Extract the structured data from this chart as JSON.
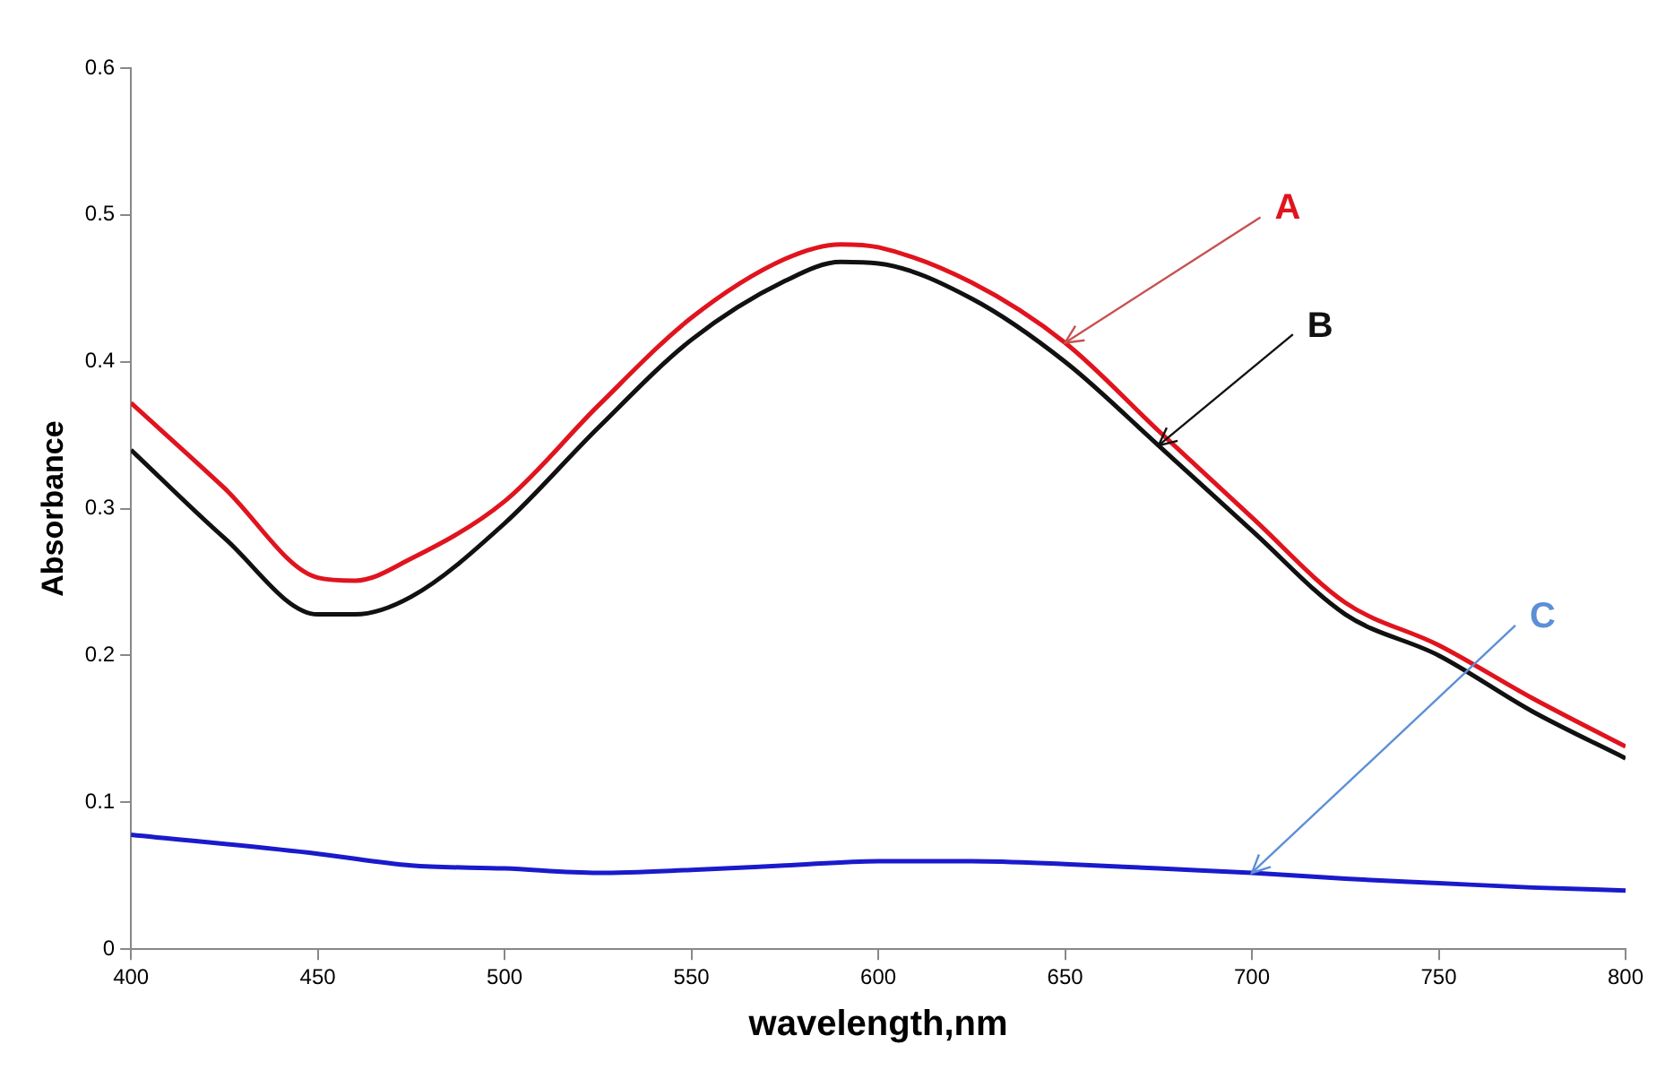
{
  "chart_data": {
    "type": "line",
    "xlabel": "wavelength,nm",
    "ylabel": "Absorbance",
    "xlim": [
      400,
      800
    ],
    "xticks": [
      400,
      450,
      500,
      550,
      600,
      650,
      700,
      750,
      800
    ],
    "ylim": [
      0,
      0.6
    ],
    "yticks": [
      0,
      0.1,
      0.2,
      0.3,
      0.4,
      0.5,
      0.6
    ],
    "grid": false,
    "legend": false,
    "marker": "none",
    "line_style": "solid",
    "series": [
      {
        "name": "A",
        "color": "#e0141e",
        "x": [
          400,
          425,
          450,
          460,
          475,
          500,
          525,
          550,
          575,
          590,
          600,
          625,
          650,
          675,
          700,
          725,
          750,
          775,
          800
        ],
        "values": [
          0.372,
          0.314,
          0.253,
          0.251,
          0.266,
          0.305,
          0.37,
          0.43,
          0.47,
          0.48,
          0.478,
          0.454,
          0.413,
          0.353,
          0.294,
          0.236,
          0.207,
          0.171,
          0.138
        ]
      },
      {
        "name": "B",
        "color": "#111111",
        "x": [
          400,
          425,
          450,
          460,
          475,
          500,
          525,
          550,
          575,
          590,
          600,
          625,
          650,
          675,
          700,
          725,
          750,
          775,
          800
        ],
        "values": [
          0.34,
          0.28,
          0.228,
          0.228,
          0.24,
          0.29,
          0.355,
          0.415,
          0.455,
          0.468,
          0.467,
          0.443,
          0.4,
          0.343,
          0.285,
          0.228,
          0.2,
          0.162,
          0.13
        ]
      },
      {
        "name": "C",
        "color": "#1a1acc",
        "x": [
          400,
          450,
          475,
          500,
          525,
          550,
          575,
          600,
          625,
          650,
          675,
          700,
          725,
          750,
          775,
          800
        ],
        "values": [
          0.078,
          0.065,
          0.057,
          0.055,
          0.052,
          0.054,
          0.057,
          0.06,
          0.06,
          0.058,
          0.055,
          0.052,
          0.048,
          0.045,
          0.042,
          0.04
        ]
      }
    ]
  }
}
